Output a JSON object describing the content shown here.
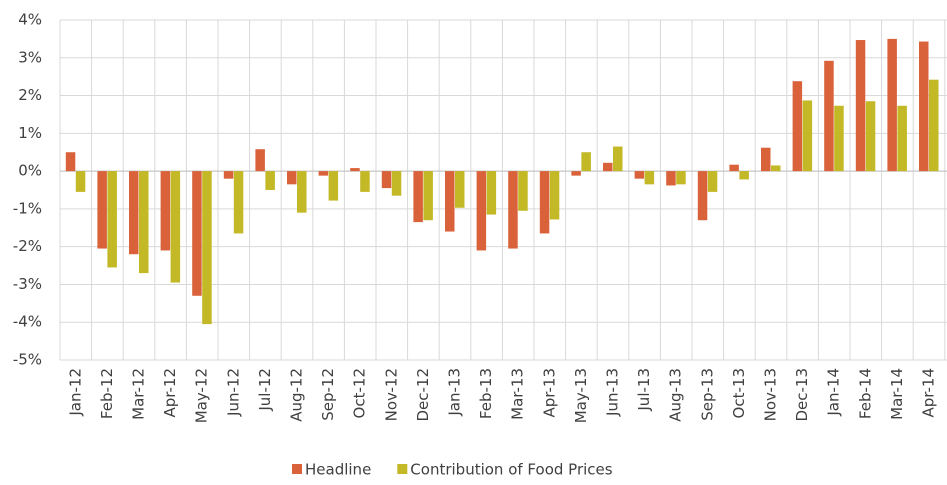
{
  "chart_data": {
    "type": "bar",
    "categories": [
      "Jan-12",
      "Feb-12",
      "Mar-12",
      "Apr-12",
      "May-12",
      "Jun-12",
      "Jul-12",
      "Aug-12",
      "Sep-12",
      "Oct-12",
      "Nov-12",
      "Dec-12",
      "Jan-13",
      "Feb-13",
      "Mar-13",
      "Apr-13",
      "May-13",
      "Jun-13",
      "Jul-13",
      "Aug-13",
      "Sep-13",
      "Oct-13",
      "Nov-13",
      "Dec-13",
      "Jan-14",
      "Feb-14",
      "Mar-14",
      "Apr-14"
    ],
    "series": [
      {
        "name": "Headline",
        "color": "#d9623b",
        "values": [
          0.5,
          -2.05,
          -2.2,
          -2.1,
          -3.3,
          -0.2,
          0.58,
          -0.35,
          -0.12,
          0.08,
          -0.45,
          -1.35,
          -1.6,
          -2.1,
          -2.05,
          -1.65,
          -0.12,
          0.22,
          -0.2,
          -0.38,
          -1.3,
          0.17,
          0.62,
          2.38,
          2.92,
          3.47,
          3.5,
          3.43
        ]
      },
      {
        "name": "Contribution of Food Prices",
        "color": "#c3b826",
        "values": [
          -0.55,
          -2.55,
          -2.7,
          -2.95,
          -4.05,
          -1.65,
          -0.5,
          -1.1,
          -0.78,
          -0.55,
          -0.65,
          -1.3,
          -0.97,
          -1.15,
          -1.05,
          -1.28,
          0.5,
          0.65,
          -0.35,
          -0.35,
          -0.55,
          -0.22,
          0.15,
          1.87,
          1.73,
          1.85,
          1.73,
          2.42
        ]
      }
    ],
    "ylim": [
      -5,
      4
    ],
    "yticks": [
      {
        "value": -5,
        "label": "-5%"
      },
      {
        "value": -4,
        "label": "-4%"
      },
      {
        "value": -3,
        "label": "-3%"
      },
      {
        "value": -2,
        "label": "-2%"
      },
      {
        "value": -1,
        "label": "-1%"
      },
      {
        "value": 0,
        "label": "0%"
      },
      {
        "value": 1,
        "label": "1%"
      },
      {
        "value": 2,
        "label": "2%"
      },
      {
        "value": 3,
        "label": "3%"
      },
      {
        "value": 4,
        "label": "4%"
      }
    ],
    "grid": true,
    "legend": "bottom"
  }
}
